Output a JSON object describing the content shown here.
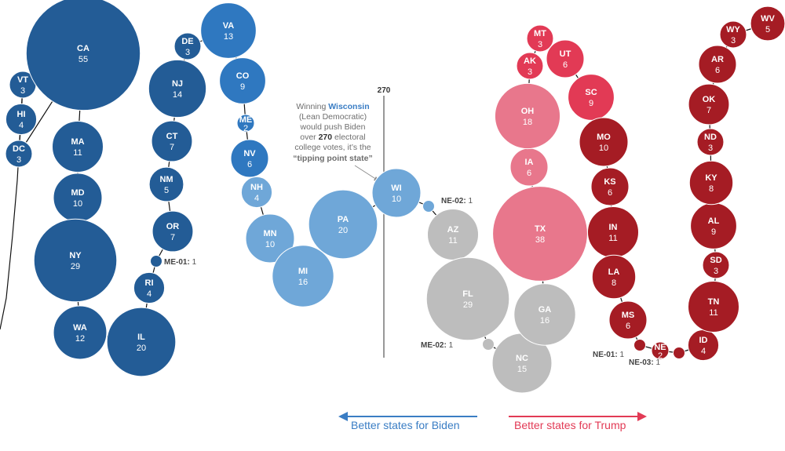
{
  "threshold_label": "270",
  "annotation": {
    "line1": "Winning ",
    "state": "Wisconsin",
    "line2": "(Lean Democratic)",
    "line3": "would push Biden",
    "line4_pre": "over ",
    "line4_bold": "270",
    "line4_post": " electoral",
    "line5": "college votes, it’s the",
    "line6": "“tipping point state”"
  },
  "legend": {
    "biden": "Better states for Biden",
    "trump": "Better states for Trump"
  },
  "colors": {
    "safe_dem": "#235c96",
    "likely_dem": "#2f78c0",
    "lean_dem": "#6fa7d8",
    "tossup": "#bdbdbd",
    "lean_rep": "#e8778c",
    "likely_rep": "#e23a55",
    "safe_rep": "#a51c24",
    "biden_arrow": "#3a7dc4",
    "trump_arrow": "#e23a55"
  },
  "states": [
    {
      "code": "VT",
      "ev": 3,
      "rating": "safe_dem"
    },
    {
      "code": "HI",
      "ev": 4,
      "rating": "safe_dem"
    },
    {
      "code": "DC",
      "ev": 3,
      "rating": "safe_dem"
    },
    {
      "code": "CA",
      "ev": 55,
      "rating": "safe_dem"
    },
    {
      "code": "MA",
      "ev": 11,
      "rating": "safe_dem"
    },
    {
      "code": "MD",
      "ev": 10,
      "rating": "safe_dem"
    },
    {
      "code": "NY",
      "ev": 29,
      "rating": "safe_dem"
    },
    {
      "code": "WA",
      "ev": 12,
      "rating": "safe_dem"
    },
    {
      "code": "IL",
      "ev": 20,
      "rating": "safe_dem"
    },
    {
      "code": "RI",
      "ev": 4,
      "rating": "safe_dem"
    },
    {
      "code": "ME-01",
      "ev": 1,
      "rating": "safe_dem"
    },
    {
      "code": "OR",
      "ev": 7,
      "rating": "safe_dem"
    },
    {
      "code": "NM",
      "ev": 5,
      "rating": "safe_dem"
    },
    {
      "code": "CT",
      "ev": 7,
      "rating": "safe_dem"
    },
    {
      "code": "NJ",
      "ev": 14,
      "rating": "safe_dem"
    },
    {
      "code": "DE",
      "ev": 3,
      "rating": "safe_dem"
    },
    {
      "code": "VA",
      "ev": 13,
      "rating": "likely_dem"
    },
    {
      "code": "CO",
      "ev": 9,
      "rating": "likely_dem"
    },
    {
      "code": "ME",
      "ev": 2,
      "rating": "likely_dem"
    },
    {
      "code": "NV",
      "ev": 6,
      "rating": "likely_dem"
    },
    {
      "code": "NH",
      "ev": 4,
      "rating": "lean_dem"
    },
    {
      "code": "MN",
      "ev": 10,
      "rating": "lean_dem"
    },
    {
      "code": "MI",
      "ev": 16,
      "rating": "lean_dem"
    },
    {
      "code": "PA",
      "ev": 20,
      "rating": "lean_dem"
    },
    {
      "code": "WI",
      "ev": 10,
      "rating": "lean_dem"
    },
    {
      "code": "NE-02",
      "ev": 1,
      "rating": "lean_dem"
    },
    {
      "code": "AZ",
      "ev": 11,
      "rating": "tossup"
    },
    {
      "code": "FL",
      "ev": 29,
      "rating": "tossup"
    },
    {
      "code": "ME-02",
      "ev": 1,
      "rating": "tossup"
    },
    {
      "code": "NC",
      "ev": 15,
      "rating": "tossup"
    },
    {
      "code": "GA",
      "ev": 16,
      "rating": "tossup"
    },
    {
      "code": "TX",
      "ev": 38,
      "rating": "lean_rep"
    },
    {
      "code": "IA",
      "ev": 6,
      "rating": "lean_rep"
    },
    {
      "code": "OH",
      "ev": 18,
      "rating": "lean_rep"
    },
    {
      "code": "AK",
      "ev": 3,
      "rating": "likely_rep"
    },
    {
      "code": "MT",
      "ev": 3,
      "rating": "likely_rep"
    },
    {
      "code": "UT",
      "ev": 6,
      "rating": "likely_rep"
    },
    {
      "code": "SC",
      "ev": 9,
      "rating": "likely_rep"
    },
    {
      "code": "MO",
      "ev": 10,
      "rating": "safe_rep"
    },
    {
      "code": "KS",
      "ev": 6,
      "rating": "safe_rep"
    },
    {
      "code": "IN",
      "ev": 11,
      "rating": "safe_rep"
    },
    {
      "code": "LA",
      "ev": 8,
      "rating": "safe_rep"
    },
    {
      "code": "MS",
      "ev": 6,
      "rating": "safe_rep"
    },
    {
      "code": "NE-01",
      "ev": 1,
      "rating": "safe_rep"
    },
    {
      "code": "NE",
      "ev": 2,
      "rating": "safe_rep"
    },
    {
      "code": "NE-03",
      "ev": 1,
      "rating": "safe_rep"
    },
    {
      "code": "ID",
      "ev": 4,
      "rating": "safe_rep"
    },
    {
      "code": "TN",
      "ev": 11,
      "rating": "safe_rep"
    },
    {
      "code": "SD",
      "ev": 3,
      "rating": "safe_rep"
    },
    {
      "code": "AL",
      "ev": 9,
      "rating": "safe_rep"
    },
    {
      "code": "KY",
      "ev": 8,
      "rating": "safe_rep"
    },
    {
      "code": "ND",
      "ev": 3,
      "rating": "safe_rep"
    },
    {
      "code": "OK",
      "ev": 7,
      "rating": "safe_rep"
    },
    {
      "code": "AR",
      "ev": 6,
      "rating": "safe_rep"
    },
    {
      "code": "WY",
      "ev": 3,
      "rating": "safe_rep"
    },
    {
      "code": "WV",
      "ev": 5,
      "rating": "safe_rep"
    }
  ]
}
